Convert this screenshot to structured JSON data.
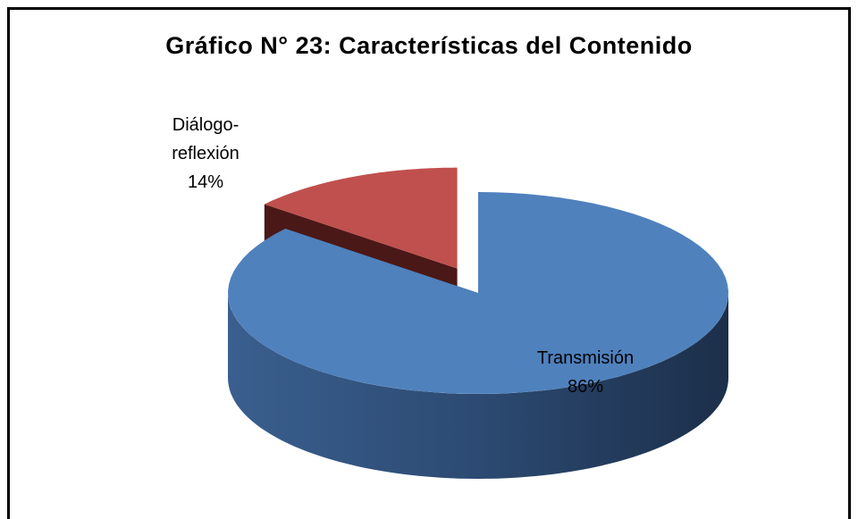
{
  "chart_data": {
    "type": "pie",
    "title": "Gráfico N° 23: Características del Contenido",
    "categories": [
      "Transmisión",
      "Diálogo-reflexión"
    ],
    "values": [
      86,
      14
    ],
    "value_labels": [
      "86%",
      "14%"
    ],
    "colors": [
      "#4f81bd",
      "#c0504d"
    ],
    "exploded": [
      false,
      true
    ],
    "three_d": true
  }
}
